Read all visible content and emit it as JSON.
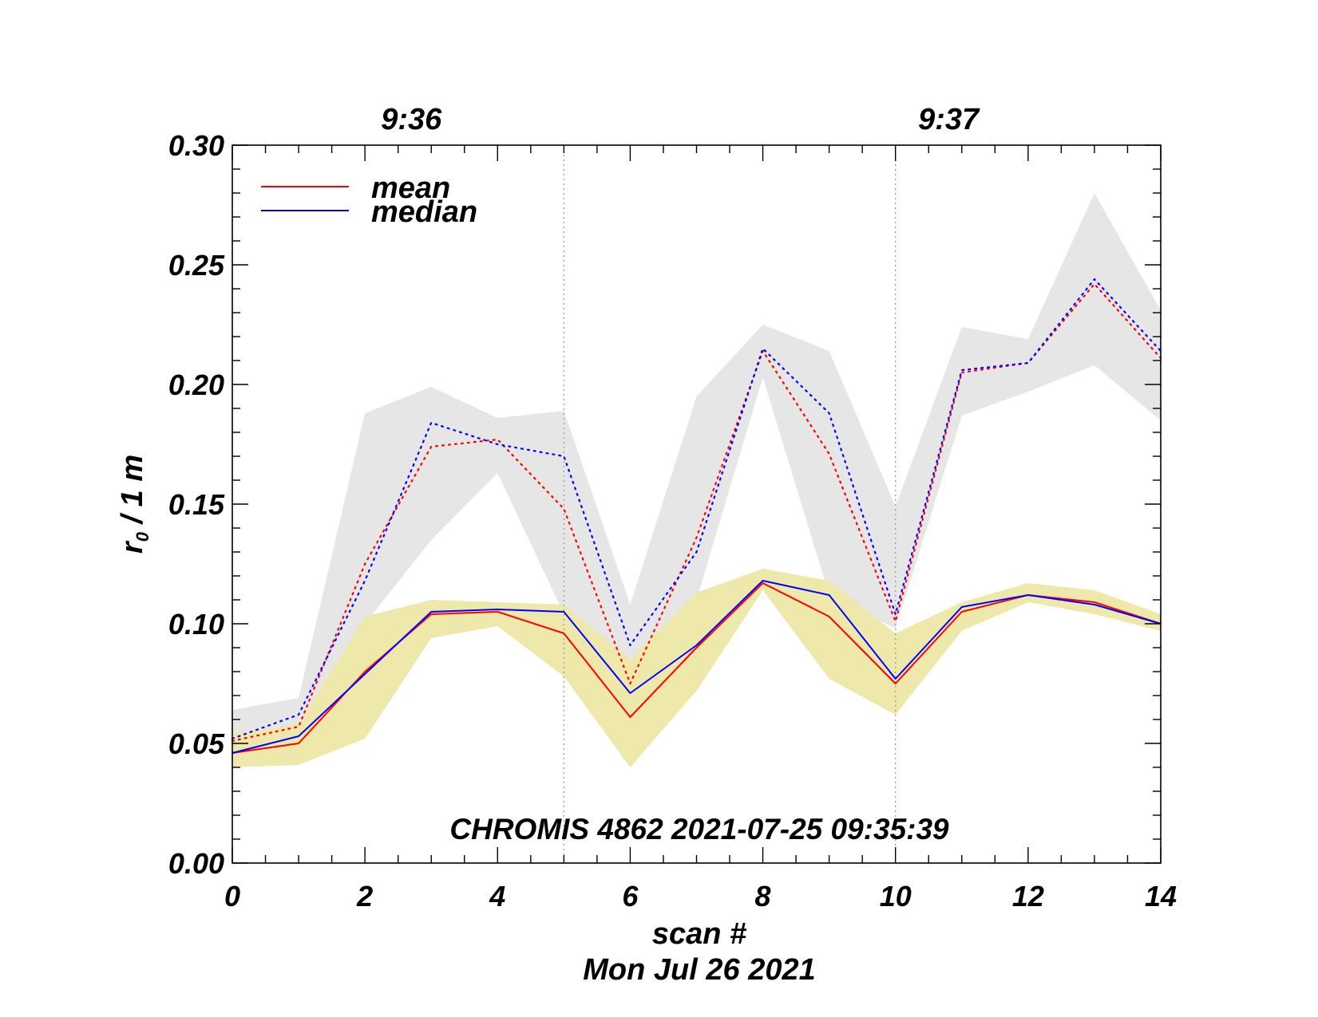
{
  "chart_data": {
    "type": "line",
    "title": "",
    "xlabel": "scan #",
    "date_label": "Mon Jul 26 2021",
    "ylabel_main": "r",
    "ylabel_sub": "0",
    "ylabel_rest": " / 1 m",
    "annotation": "CHROMIS 4862 2021-07-25 09:35:39",
    "xlim": [
      0,
      14
    ],
    "ylim": [
      0,
      0.3
    ],
    "x_ticks": [
      "0",
      "2",
      "4",
      "6",
      "8",
      "10",
      "12",
      "14"
    ],
    "y_ticks": [
      "0.00",
      "0.05",
      "0.10",
      "0.15",
      "0.20",
      "0.25",
      "0.30"
    ],
    "time_markers": [
      {
        "x": 5,
        "label": "9:36"
      },
      {
        "x": 10,
        "label": "9:37"
      }
    ],
    "legend": {
      "position": "top-left",
      "entries": [
        "mean",
        "median"
      ]
    },
    "x": [
      0,
      1,
      2,
      3,
      4,
      5,
      6,
      7,
      8,
      9,
      10,
      11,
      12,
      13,
      14
    ],
    "series": [
      {
        "name": "mean",
        "style": "solid",
        "color": "#ff0000",
        "values": [
          0.046,
          0.05,
          0.08,
          0.104,
          0.105,
          0.096,
          0.061,
          0.09,
          0.117,
          0.103,
          0.075,
          0.105,
          0.112,
          0.109,
          0.1
        ]
      },
      {
        "name": "median",
        "style": "solid",
        "color": "#0000ff",
        "values": [
          0.046,
          0.053,
          0.079,
          0.105,
          0.106,
          0.105,
          0.071,
          0.091,
          0.118,
          0.112,
          0.077,
          0.107,
          0.112,
          0.108,
          0.1
        ]
      },
      {
        "name": "mean (dotted)",
        "style": "dotted",
        "color": "#ff0000",
        "values": [
          0.051,
          0.057,
          0.125,
          0.174,
          0.177,
          0.148,
          0.075,
          0.136,
          0.214,
          0.171,
          0.101,
          0.205,
          0.209,
          0.242,
          0.211
        ]
      },
      {
        "name": "median (dotted)",
        "style": "dotted",
        "color": "#0000ff",
        "values": [
          0.052,
          0.062,
          0.118,
          0.184,
          0.175,
          0.17,
          0.091,
          0.13,
          0.215,
          0.188,
          0.104,
          0.206,
          0.209,
          0.244,
          0.214
        ]
      }
    ],
    "bands": [
      {
        "name": "dotted range",
        "color": "#e6e6e6",
        "lower": [
          0.046,
          0.055,
          0.1,
          0.135,
          0.163,
          0.104,
          0.085,
          0.11,
          0.203,
          0.112,
          0.098,
          0.187,
          0.197,
          0.208,
          0.185
        ],
        "upper": [
          0.064,
          0.069,
          0.188,
          0.199,
          0.186,
          0.189,
          0.108,
          0.195,
          0.225,
          0.214,
          0.149,
          0.224,
          0.219,
          0.28,
          0.231
        ]
      },
      {
        "name": "solid range",
        "color": "#eee8aa",
        "lower": [
          0.04,
          0.041,
          0.052,
          0.094,
          0.099,
          0.078,
          0.04,
          0.072,
          0.114,
          0.077,
          0.062,
          0.097,
          0.109,
          0.104,
          0.097
        ],
        "upper": [
          0.054,
          0.058,
          0.103,
          0.11,
          0.109,
          0.108,
          0.085,
          0.113,
          0.123,
          0.118,
          0.096,
          0.109,
          0.117,
          0.114,
          0.104
        ]
      }
    ]
  }
}
